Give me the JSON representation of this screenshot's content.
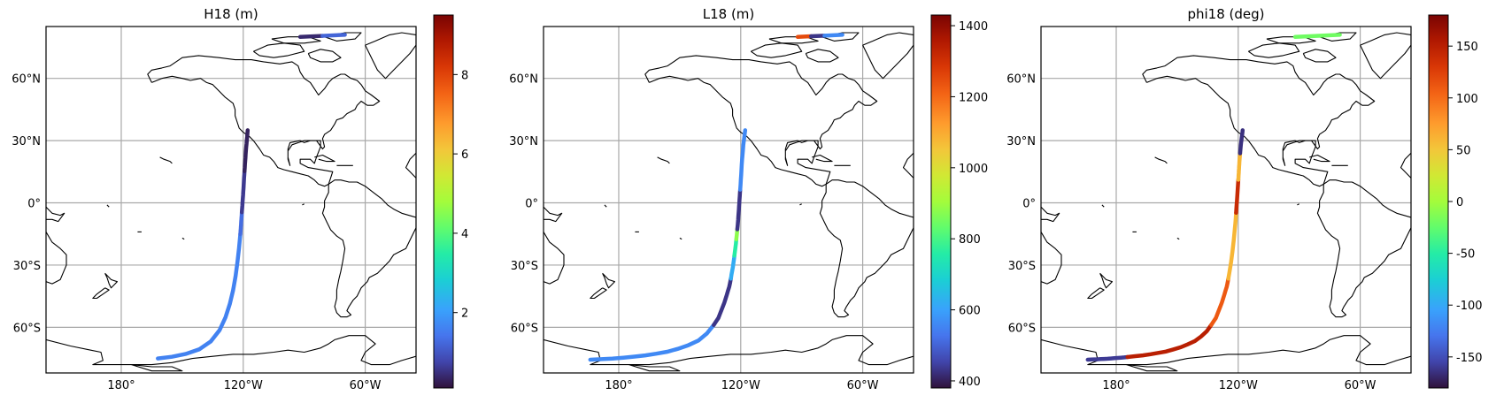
{
  "panels": [
    {
      "title": "H18 (m)",
      "colorbar": {
        "ticks": [
          2,
          4,
          6,
          8
        ],
        "min": 0.1,
        "max": 9.5
      },
      "track_segments": [
        {
          "from": 0.0,
          "to": 0.62,
          "value": 1.6
        },
        {
          "from": 0.62,
          "to": 0.7,
          "value": 1.3
        },
        {
          "from": 0.7,
          "to": 0.85,
          "value": 0.6
        },
        {
          "from": 0.85,
          "to": 1.0,
          "value": 0.3
        }
      ],
      "arctic_segments": [
        {
          "from": 0.0,
          "to": 0.5,
          "value": 0.4
        },
        {
          "from": 0.5,
          "to": 1.0,
          "value": 1.2
        }
      ]
    },
    {
      "title": "L18 (m)",
      "colorbar": {
        "ticks": [
          400,
          600,
          800,
          1000,
          1200,
          1400
        ],
        "min": 380,
        "max": 1430
      },
      "track_segments": [
        {
          "from": 0.0,
          "to": 0.4,
          "value": 560
        },
        {
          "from": 0.4,
          "to": 0.55,
          "value": 430
        },
        {
          "from": 0.55,
          "to": 0.62,
          "value": 620
        },
        {
          "from": 0.62,
          "to": 0.67,
          "value": 760
        },
        {
          "from": 0.67,
          "to": 0.7,
          "value": 880
        },
        {
          "from": 0.7,
          "to": 0.82,
          "value": 430
        },
        {
          "from": 0.82,
          "to": 1.0,
          "value": 560
        }
      ],
      "arctic_segments": [
        {
          "from": 0.0,
          "to": 0.3,
          "value": 1250
        },
        {
          "from": 0.3,
          "to": 0.6,
          "value": 430
        },
        {
          "from": 0.6,
          "to": 1.0,
          "value": 560
        }
      ]
    },
    {
      "title": "phi18 (deg)",
      "colorbar": {
        "ticks": [
          -150,
          -100,
          -50,
          0,
          50,
          100,
          150
        ],
        "min": -180,
        "max": 180
      },
      "track_segments": [
        {
          "from": 0.0,
          "to": 0.12,
          "value": -160
        },
        {
          "from": 0.12,
          "to": 0.4,
          "value": 150
        },
        {
          "from": 0.4,
          "to": 0.55,
          "value": 110
        },
        {
          "from": 0.55,
          "to": 0.75,
          "value": 60
        },
        {
          "from": 0.75,
          "to": 0.85,
          "value": 140
        },
        {
          "from": 0.85,
          "to": 0.93,
          "value": 60
        },
        {
          "from": 0.93,
          "to": 1.0,
          "value": -165
        }
      ],
      "arctic_segments": [
        {
          "from": 0.0,
          "to": 1.0,
          "value": -20
        }
      ]
    }
  ],
  "map_axes": {
    "lon_ticks": [
      {
        "lon": 180,
        "label": "180°"
      },
      {
        "lon": 240,
        "label": "120°W"
      },
      {
        "lon": 300,
        "label": "60°W"
      }
    ],
    "lat_ticks": [
      {
        "lat": 60,
        "label": "60°N"
      },
      {
        "lat": 30,
        "label": "30°N"
      },
      {
        "lat": 0,
        "label": "0°"
      },
      {
        "lat": -30,
        "label": "30°S"
      },
      {
        "lat": -60,
        "label": "60°S"
      }
    ],
    "lon_range": [
      143,
      325
    ],
    "lat_range": [
      -82,
      85
    ],
    "grid": true
  },
  "chart_data": [
    {
      "type": "scatter",
      "title": "H18 (m)",
      "colorbar_range": [
        0.1,
        9.5
      ],
      "colorbar_ticks": [
        2,
        4,
        6,
        8
      ],
      "x": [
        198,
        222,
        233,
        237,
        239,
        241,
        243,
        271
      ],
      "y": [
        -75,
        -66,
        -40,
        -15,
        0,
        20,
        35,
        79
      ],
      "values": [
        1.6,
        1.6,
        1.4,
        0.6,
        0.5,
        0.3,
        0.3,
        0.9
      ]
    },
    {
      "type": "scatter",
      "title": "L18 (m)",
      "colorbar_range": [
        380,
        1430
      ],
      "colorbar_ticks": [
        400,
        600,
        800,
        1000,
        1200,
        1400
      ],
      "x": [
        166,
        198,
        222,
        233,
        237,
        239,
        241,
        243,
        281
      ],
      "y": [
        -75,
        -73,
        -66,
        -40,
        -20,
        0,
        15,
        35,
        80
      ],
      "values": [
        560,
        560,
        430,
        620,
        880,
        430,
        560,
        560,
        560
      ]
    },
    {
      "type": "scatter",
      "title": "phi18 (deg)",
      "colorbar_range": [
        -180,
        180
      ],
      "colorbar_ticks": [
        -150,
        -100,
        -50,
        0,
        50,
        100,
        150
      ],
      "x": [
        166,
        180,
        222,
        233,
        237,
        239,
        241,
        243,
        271
      ],
      "y": [
        -75,
        -74,
        -66,
        -40,
        -15,
        0,
        20,
        35,
        79
      ],
      "values": [
        -160,
        150,
        110,
        60,
        140,
        140,
        60,
        -165,
        -20
      ]
    }
  ]
}
